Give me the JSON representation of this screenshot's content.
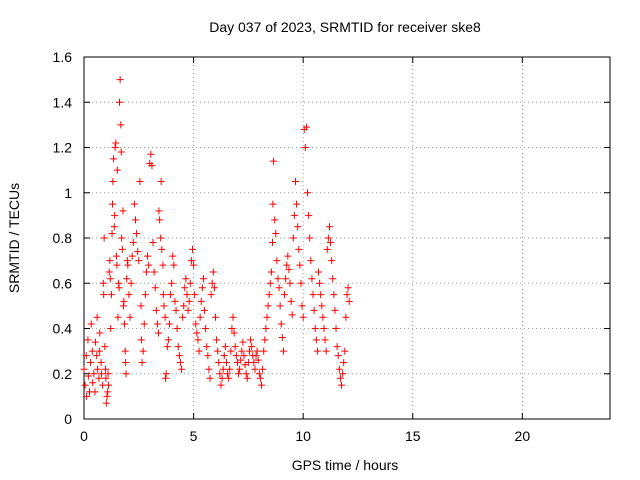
{
  "chart_data": {
    "type": "scatter",
    "title": "Day 037 of 2023, SRMTID for receiver ske8",
    "xlabel": "GPS time / hours",
    "ylabel": "SRMTID / TECUs",
    "xlim": [
      0,
      24
    ],
    "ylim": [
      0,
      1.6
    ],
    "xticks": [
      0,
      5,
      10,
      15,
      20
    ],
    "yticks": [
      0,
      0.2,
      0.4,
      0.6,
      0.8,
      1.0,
      1.2,
      1.4,
      1.6
    ],
    "xtick_labels": [
      "0",
      "5",
      "10",
      "15",
      "20"
    ],
    "ytick_labels": [
      "0",
      "0.2",
      "0.4",
      "0.6",
      "0.8",
      "1",
      "1.2",
      "1.4",
      "1.6"
    ],
    "grid": true,
    "marker": "+",
    "color": "#ff0000",
    "series": [
      {
        "name": "ske8",
        "points": [
          [
            0.0,
            0.22
          ],
          [
            0.05,
            0.15
          ],
          [
            0.1,
            0.28
          ],
          [
            0.12,
            0.1
          ],
          [
            0.18,
            0.35
          ],
          [
            0.2,
            0.19
          ],
          [
            0.25,
            0.12
          ],
          [
            0.3,
            0.25
          ],
          [
            0.33,
            0.42
          ],
          [
            0.38,
            0.3
          ],
          [
            0.4,
            0.16
          ],
          [
            0.45,
            0.2
          ],
          [
            0.5,
            0.12
          ],
          [
            0.52,
            0.34
          ],
          [
            0.58,
            0.28
          ],
          [
            0.6,
            0.45
          ],
          [
            0.62,
            0.22
          ],
          [
            0.68,
            0.18
          ],
          [
            0.7,
            0.3
          ],
          [
            0.72,
            0.38
          ],
          [
            0.78,
            0.25
          ],
          [
            0.8,
            0.2
          ],
          [
            0.85,
            0.15
          ],
          [
            0.88,
            0.6
          ],
          [
            0.9,
            0.55
          ],
          [
            0.92,
            0.8
          ],
          [
            0.95,
            0.32
          ],
          [
            0.98,
            0.22
          ],
          [
            1.0,
            0.18
          ],
          [
            1.02,
            0.07
          ],
          [
            1.05,
            0.1
          ],
          [
            1.08,
            0.12
          ],
          [
            1.1,
            0.2
          ],
          [
            1.12,
            0.15
          ],
          [
            1.15,
            0.65
          ],
          [
            1.18,
            0.7
          ],
          [
            1.2,
            0.62
          ],
          [
            1.22,
            0.4
          ],
          [
            1.25,
            0.55
          ],
          [
            1.28,
            0.82
          ],
          [
            1.3,
            0.95
          ],
          [
            1.32,
            1.05
          ],
          [
            1.35,
            1.15
          ],
          [
            1.38,
            0.85
          ],
          [
            1.4,
            0.9
          ],
          [
            1.42,
            1.2
          ],
          [
            1.45,
            1.22
          ],
          [
            1.48,
            0.72
          ],
          [
            1.5,
            0.68
          ],
          [
            1.52,
            1.1
          ],
          [
            1.55,
            0.45
          ],
          [
            1.58,
            0.6
          ],
          [
            1.6,
            0.58
          ],
          [
            1.62,
            1.4
          ],
          [
            1.65,
            1.5
          ],
          [
            1.68,
            1.3
          ],
          [
            1.7,
            1.18
          ],
          [
            1.72,
            0.8
          ],
          [
            1.75,
            0.75
          ],
          [
            1.78,
            0.92
          ],
          [
            1.8,
            0.5
          ],
          [
            1.82,
            0.52
          ],
          [
            1.85,
            0.42
          ],
          [
            1.88,
            0.3
          ],
          [
            1.9,
            0.25
          ],
          [
            1.92,
            0.2
          ],
          [
            1.95,
            0.62
          ],
          [
            1.98,
            0.7
          ],
          [
            2.0,
            0.68
          ],
          [
            2.05,
            0.55
          ],
          [
            2.1,
            0.45
          ],
          [
            2.15,
            0.6
          ],
          [
            2.2,
            0.72
          ],
          [
            2.25,
            0.78
          ],
          [
            2.3,
            0.95
          ],
          [
            2.35,
            0.88
          ],
          [
            2.4,
            0.82
          ],
          [
            2.45,
            0.74
          ],
          [
            2.5,
            0.7
          ],
          [
            2.55,
            1.05
          ],
          [
            2.6,
            0.5
          ],
          [
            2.62,
            0.35
          ],
          [
            2.65,
            0.25
          ],
          [
            2.7,
            0.3
          ],
          [
            2.75,
            0.42
          ],
          [
            2.8,
            0.55
          ],
          [
            2.85,
            0.65
          ],
          [
            2.9,
            0.72
          ],
          [
            2.95,
            0.68
          ],
          [
            3.0,
            1.13
          ],
          [
            3.05,
            1.17
          ],
          [
            3.1,
            1.12
          ],
          [
            3.15,
            0.78
          ],
          [
            3.2,
            0.65
          ],
          [
            3.25,
            0.58
          ],
          [
            3.3,
            0.48
          ],
          [
            3.35,
            0.42
          ],
          [
            3.4,
            0.38
          ],
          [
            3.42,
            0.92
          ],
          [
            3.45,
            0.88
          ],
          [
            3.5,
            0.8
          ],
          [
            3.52,
            1.05
          ],
          [
            3.55,
            0.75
          ],
          [
            3.6,
            0.68
          ],
          [
            3.62,
            0.55
          ],
          [
            3.65,
            0.5
          ],
          [
            3.7,
            0.45
          ],
          [
            3.72,
            0.18
          ],
          [
            3.75,
            0.2
          ],
          [
            3.8,
            0.32
          ],
          [
            3.85,
            0.35
          ],
          [
            3.9,
            0.42
          ],
          [
            3.95,
            0.55
          ],
          [
            4.0,
            0.6
          ],
          [
            4.05,
            0.72
          ],
          [
            4.1,
            0.68
          ],
          [
            4.15,
            0.52
          ],
          [
            4.2,
            0.48
          ],
          [
            4.25,
            0.4
          ],
          [
            4.3,
            0.32
          ],
          [
            4.35,
            0.28
          ],
          [
            4.4,
            0.25
          ],
          [
            4.45,
            0.22
          ],
          [
            4.5,
            0.45
          ],
          [
            4.55,
            0.5
          ],
          [
            4.6,
            0.58
          ],
          [
            4.65,
            0.62
          ],
          [
            4.7,
            0.55
          ],
          [
            4.75,
            0.48
          ],
          [
            4.8,
            0.52
          ],
          [
            4.85,
            0.6
          ],
          [
            4.9,
            0.7
          ],
          [
            4.95,
            0.75
          ],
          [
            5.0,
            0.68
          ],
          [
            5.05,
            0.55
          ],
          [
            5.1,
            0.42
          ],
          [
            5.15,
            0.38
          ],
          [
            5.2,
            0.35
          ],
          [
            5.25,
            0.3
          ],
          [
            5.3,
            0.45
          ],
          [
            5.35,
            0.52
          ],
          [
            5.4,
            0.58
          ],
          [
            5.45,
            0.62
          ],
          [
            5.5,
            0.48
          ],
          [
            5.55,
            0.4
          ],
          [
            5.6,
            0.32
          ],
          [
            5.65,
            0.28
          ],
          [
            5.7,
            0.22
          ],
          [
            5.75,
            0.18
          ],
          [
            5.8,
            0.55
          ],
          [
            5.85,
            0.6
          ],
          [
            5.9,
            0.65
          ],
          [
            5.95,
            0.58
          ],
          [
            6.0,
            0.45
          ],
          [
            6.05,
            0.35
          ],
          [
            6.1,
            0.3
          ],
          [
            6.15,
            0.25
          ],
          [
            6.2,
            0.2
          ],
          [
            6.25,
            0.15
          ],
          [
            6.3,
            0.18
          ],
          [
            6.35,
            0.22
          ],
          [
            6.4,
            0.28
          ],
          [
            6.45,
            0.32
          ],
          [
            6.5,
            0.25
          ],
          [
            6.55,
            0.2
          ],
          [
            6.6,
            0.18
          ],
          [
            6.65,
            0.22
          ],
          [
            6.7,
            0.3
          ],
          [
            6.75,
            0.4
          ],
          [
            6.8,
            0.45
          ],
          [
            6.85,
            0.38
          ],
          [
            6.9,
            0.32
          ],
          [
            6.95,
            0.28
          ],
          [
            7.0,
            0.25
          ],
          [
            7.05,
            0.2
          ],
          [
            7.1,
            0.22
          ],
          [
            7.15,
            0.26
          ],
          [
            7.2,
            0.3
          ],
          [
            7.25,
            0.34
          ],
          [
            7.3,
            0.28
          ],
          [
            7.35,
            0.24
          ],
          [
            7.4,
            0.2
          ],
          [
            7.45,
            0.18
          ],
          [
            7.5,
            0.25
          ],
          [
            7.55,
            0.3
          ],
          [
            7.6,
            0.35
          ],
          [
            7.65,
            0.32
          ],
          [
            7.7,
            0.28
          ],
          [
            7.75,
            0.25
          ],
          [
            7.8,
            0.22
          ],
          [
            7.85,
            0.28
          ],
          [
            7.9,
            0.3
          ],
          [
            7.95,
            0.26
          ],
          [
            8.0,
            0.2
          ],
          [
            8.05,
            0.18
          ],
          [
            8.1,
            0.15
          ],
          [
            8.15,
            0.22
          ],
          [
            8.2,
            0.3
          ],
          [
            8.25,
            0.35
          ],
          [
            8.3,
            0.4
          ],
          [
            8.35,
            0.45
          ],
          [
            8.4,
            0.5
          ],
          [
            8.45,
            0.55
          ],
          [
            8.5,
            0.6
          ],
          [
            8.55,
            0.65
          ],
          [
            8.6,
            0.78
          ],
          [
            8.62,
            0.95
          ],
          [
            8.65,
            1.14
          ],
          [
            8.7,
            0.88
          ],
          [
            8.75,
            0.82
          ],
          [
            8.8,
            0.7
          ],
          [
            8.85,
            0.62
          ],
          [
            8.9,
            0.58
          ],
          [
            8.95,
            0.5
          ],
          [
            9.0,
            0.42
          ],
          [
            9.05,
            0.36
          ],
          [
            9.1,
            0.3
          ],
          [
            9.15,
            0.55
          ],
          [
            9.2,
            0.62
          ],
          [
            9.25,
            0.68
          ],
          [
            9.3,
            0.72
          ],
          [
            9.35,
            0.66
          ],
          [
            9.4,
            0.6
          ],
          [
            9.45,
            0.52
          ],
          [
            9.5,
            0.46
          ],
          [
            9.55,
            0.8
          ],
          [
            9.6,
            0.9
          ],
          [
            9.65,
            1.05
          ],
          [
            9.7,
            0.95
          ],
          [
            9.75,
            0.85
          ],
          [
            9.8,
            0.75
          ],
          [
            9.85,
            0.68
          ],
          [
            9.9,
            0.6
          ],
          [
            9.95,
            0.5
          ],
          [
            10.0,
            0.45
          ],
          [
            10.05,
            1.28
          ],
          [
            10.1,
            1.2
          ],
          [
            10.15,
            1.29
          ],
          [
            10.2,
            1.0
          ],
          [
            10.25,
            0.9
          ],
          [
            10.3,
            0.8
          ],
          [
            10.35,
            0.7
          ],
          [
            10.4,
            0.62
          ],
          [
            10.45,
            0.55
          ],
          [
            10.5,
            0.48
          ],
          [
            10.55,
            0.4
          ],
          [
            10.6,
            0.35
          ],
          [
            10.65,
            0.3
          ],
          [
            10.7,
            0.65
          ],
          [
            10.75,
            0.6
          ],
          [
            10.8,
            0.55
          ],
          [
            10.85,
            0.5
          ],
          [
            10.9,
            0.45
          ],
          [
            10.95,
            0.4
          ],
          [
            11.0,
            0.35
          ],
          [
            11.05,
            0.3
          ],
          [
            11.1,
            0.75
          ],
          [
            11.15,
            0.8
          ],
          [
            11.2,
            0.85
          ],
          [
            11.25,
            0.78
          ],
          [
            11.3,
            0.7
          ],
          [
            11.35,
            0.62
          ],
          [
            11.4,
            0.55
          ],
          [
            11.45,
            0.48
          ],
          [
            11.5,
            0.4
          ],
          [
            11.55,
            0.32
          ],
          [
            11.6,
            0.28
          ],
          [
            11.65,
            0.22
          ],
          [
            11.7,
            0.18
          ],
          [
            11.75,
            0.15
          ],
          [
            11.8,
            0.2
          ],
          [
            11.85,
            0.25
          ],
          [
            11.9,
            0.3
          ],
          [
            11.95,
            0.45
          ],
          [
            12.0,
            0.55
          ],
          [
            12.05,
            0.58
          ],
          [
            12.1,
            0.52
          ]
        ]
      }
    ]
  }
}
